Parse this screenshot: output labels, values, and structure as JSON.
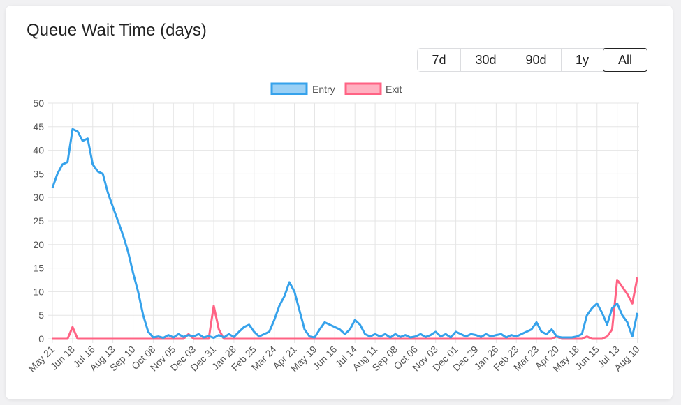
{
  "title": "Queue Wait Time (days)",
  "range_buttons": [
    "7d",
    "30d",
    "90d",
    "1y",
    "All"
  ],
  "active_range": "All",
  "chart_data": {
    "type": "line",
    "title": "Queue Wait Time (days)",
    "xlabel": "",
    "ylabel": "",
    "ylim": [
      0,
      50
    ],
    "yticks": [
      0,
      5,
      10,
      15,
      20,
      25,
      30,
      35,
      40,
      45,
      50
    ],
    "interval_days": 7,
    "tick_every_points": 4,
    "xtick_labels": [
      "May 21",
      "Jun 18",
      "Jul 16",
      "Aug 13",
      "Sep 10",
      "Oct 08",
      "Nov 05",
      "Dec 03",
      "Dec 31",
      "Jan 28",
      "Feb 25",
      "Mar 24",
      "Apr 21",
      "May 19",
      "Jun 16",
      "Jul 14",
      "Aug 11",
      "Sep 08",
      "Oct 06",
      "Nov 03",
      "Dec 01",
      "Dec 29",
      "Jan 26",
      "Feb 23",
      "Mar 23",
      "Apr 20",
      "May 18",
      "Jun 15",
      "Jul 13",
      "Aug 10"
    ],
    "grid": true,
    "legend": "top-center",
    "series": [
      {
        "name": "Entry",
        "color": "#36a2eb",
        "fill": "#9ad0f5",
        "values": [
          32,
          35,
          37,
          37.5,
          44.5,
          44,
          42,
          42.5,
          37,
          35.5,
          35,
          31,
          28,
          25,
          22,
          18.5,
          14,
          10,
          5,
          1.5,
          0.3,
          0.5,
          0.2,
          0.8,
          0.3,
          1,
          0.4,
          0.8,
          0.5,
          1,
          0.3,
          0.6,
          0.2,
          0.8,
          0.3,
          1,
          0.4,
          1.5,
          2.5,
          3,
          1.5,
          0.5,
          1,
          1.5,
          4,
          7,
          9,
          12,
          10,
          6,
          2,
          0.5,
          0.3,
          2,
          3.5,
          3,
          2.5,
          2,
          1,
          2,
          4,
          3,
          1,
          0.5,
          1,
          0.5,
          1,
          0.3,
          1,
          0.4,
          0.8,
          0.3,
          0.5,
          1,
          0.4,
          0.8,
          1.5,
          0.5,
          1,
          0.3,
          1.5,
          1,
          0.5,
          1,
          0.8,
          0.4,
          1,
          0.5,
          0.8,
          1,
          0.3,
          0.8,
          0.5,
          1,
          1.5,
          2,
          3.5,
          1.5,
          1,
          2,
          0.5,
          0.3,
          0.3,
          0.3,
          0.5,
          1,
          5,
          6.5,
          7.5,
          5.5,
          3,
          6.5,
          7.5,
          5,
          3.5,
          0.5,
          5.5
        ]
      },
      {
        "name": "Exit",
        "color": "#ff6384",
        "fill": "#ffb1c1",
        "values": [
          0,
          0,
          0,
          0,
          2.5,
          0,
          0,
          0,
          0,
          0,
          0,
          0,
          0,
          0,
          0,
          0,
          0,
          0,
          0,
          0,
          0,
          0,
          0,
          0,
          0,
          0,
          0,
          1,
          0,
          0,
          0,
          0,
          7,
          2,
          0,
          0,
          0,
          0,
          0,
          0,
          0,
          0,
          0,
          0,
          0,
          0,
          0,
          0,
          0,
          0,
          0,
          0,
          0,
          0,
          0,
          0,
          0,
          0,
          0,
          0,
          0,
          0,
          0,
          0,
          0,
          0,
          0,
          0,
          0,
          0,
          0,
          0,
          0,
          0,
          0,
          0,
          0,
          0,
          0,
          0,
          0,
          0,
          0,
          0,
          0,
          0,
          0,
          0,
          0,
          0,
          0,
          0,
          0,
          0,
          0,
          0,
          0,
          0,
          0,
          0,
          0.5,
          0,
          0,
          0,
          0,
          0,
          0.5,
          0,
          0,
          0,
          0.5,
          2,
          12.5,
          11,
          9.5,
          7.5,
          13
        ]
      }
    ]
  }
}
